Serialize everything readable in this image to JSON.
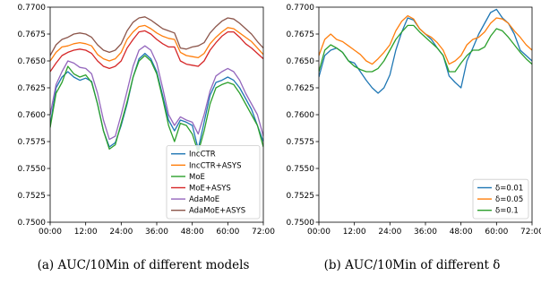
{
  "chart_data": [
    {
      "type": "line",
      "caption": "(a)  AUC/10Min of different models",
      "xlim": [
        0,
        72
      ],
      "ylim": [
        0.75,
        0.77
      ],
      "x_ticks": [
        0,
        12,
        24,
        36,
        48,
        60,
        72
      ],
      "x_tick_labels": [
        "00:00",
        "12:00",
        "24:00",
        "36:00",
        "48:00",
        "60:00",
        "72:00"
      ],
      "y_ticks": [
        0.75,
        0.7525,
        0.755,
        0.7575,
        0.76,
        0.7625,
        0.765,
        0.7675,
        0.77
      ],
      "y_tick_labels": [
        "0.7500",
        "0.7525",
        "0.7550",
        "0.7575",
        "0.7600",
        "0.7625",
        "0.7650",
        "0.7675",
        "0.7700"
      ],
      "legend": "lower-right",
      "x": [
        0,
        2,
        4,
        6,
        8,
        10,
        12,
        14,
        16,
        18,
        20,
        22,
        24,
        26,
        28,
        30,
        32,
        34,
        36,
        38,
        40,
        42,
        44,
        46,
        48,
        50,
        52,
        54,
        56,
        58,
        60,
        62,
        64,
        66,
        68,
        70,
        72
      ],
      "series": [
        {
          "name": "IncCTR",
          "color": "#1f77b4",
          "values": [
            0.759,
            0.7625,
            0.7635,
            0.764,
            0.7635,
            0.7632,
            0.7634,
            0.7631,
            0.761,
            0.7585,
            0.757,
            0.7574,
            0.759,
            0.761,
            0.7635,
            0.7652,
            0.7657,
            0.7652,
            0.764,
            0.7618,
            0.7595,
            0.7585,
            0.7595,
            0.7593,
            0.759,
            0.7568,
            0.7593,
            0.7618,
            0.763,
            0.7632,
            0.7635,
            0.7632,
            0.7625,
            0.7615,
            0.7605,
            0.759,
            0.7575
          ]
        },
        {
          "name": "IncCTR+ASYS",
          "color": "#ff7f0e",
          "values": [
            0.765,
            0.7658,
            0.7663,
            0.7664,
            0.7666,
            0.7667,
            0.7666,
            0.7664,
            0.7656,
            0.7652,
            0.765,
            0.7652,
            0.7658,
            0.767,
            0.7677,
            0.7682,
            0.7683,
            0.768,
            0.7676,
            0.7673,
            0.7671,
            0.767,
            0.7658,
            0.7655,
            0.7654,
            0.7653,
            0.7657,
            0.7666,
            0.7672,
            0.7677,
            0.7681,
            0.768,
            0.7676,
            0.7672,
            0.7668,
            0.7662,
            0.7656
          ]
        },
        {
          "name": "MoE",
          "color": "#2ca02c",
          "values": [
            0.7588,
            0.762,
            0.763,
            0.7645,
            0.7638,
            0.7635,
            0.7637,
            0.763,
            0.761,
            0.7585,
            0.7568,
            0.7572,
            0.7592,
            0.7612,
            0.7635,
            0.765,
            0.7655,
            0.765,
            0.7638,
            0.7615,
            0.759,
            0.7575,
            0.7592,
            0.759,
            0.7582,
            0.7565,
            0.7585,
            0.761,
            0.7625,
            0.7628,
            0.763,
            0.7628,
            0.762,
            0.761,
            0.76,
            0.759,
            0.757
          ]
        },
        {
          "name": "MoE+ASYS",
          "color": "#d62728",
          "values": [
            0.764,
            0.7648,
            0.7655,
            0.7658,
            0.766,
            0.7661,
            0.766,
            0.7657,
            0.765,
            0.7645,
            0.7643,
            0.7645,
            0.765,
            0.7662,
            0.767,
            0.7677,
            0.7678,
            0.7675,
            0.767,
            0.7666,
            0.7663,
            0.7663,
            0.765,
            0.7647,
            0.7646,
            0.7645,
            0.765,
            0.766,
            0.7667,
            0.7673,
            0.7677,
            0.7677,
            0.7672,
            0.7666,
            0.7662,
            0.7657,
            0.7652
          ]
        },
        {
          "name": "AdaMoE",
          "color": "#9467bd",
          "values": [
            0.76,
            0.7628,
            0.764,
            0.765,
            0.7648,
            0.7644,
            0.7643,
            0.7638,
            0.762,
            0.7595,
            0.7577,
            0.758,
            0.76,
            0.7622,
            0.7645,
            0.766,
            0.7664,
            0.766,
            0.7648,
            0.7625,
            0.76,
            0.759,
            0.7598,
            0.7595,
            0.7593,
            0.7582,
            0.76,
            0.7622,
            0.7636,
            0.764,
            0.7643,
            0.764,
            0.7632,
            0.762,
            0.761,
            0.76,
            0.758
          ]
        },
        {
          "name": "AdaMoE+ASYS",
          "color": "#8c564b",
          "values": [
            0.7655,
            0.7665,
            0.767,
            0.7672,
            0.7675,
            0.7676,
            0.7675,
            0.7672,
            0.7665,
            0.766,
            0.7658,
            0.766,
            0.7666,
            0.7678,
            0.7686,
            0.769,
            0.7691,
            0.7688,
            0.7684,
            0.768,
            0.7678,
            0.7676,
            0.7662,
            0.7661,
            0.7663,
            0.7664,
            0.7667,
            0.7676,
            0.7682,
            0.7687,
            0.769,
            0.7689,
            0.7685,
            0.768,
            0.7675,
            0.7668,
            0.7662
          ]
        }
      ]
    },
    {
      "type": "line",
      "caption": "(b)  AUC/10Min of different δ",
      "xlim": [
        0,
        72
      ],
      "ylim": [
        0.75,
        0.77
      ],
      "x_ticks": [
        0,
        12,
        24,
        36,
        48,
        60,
        72
      ],
      "x_tick_labels": [
        "00:00",
        "12:00",
        "24:00",
        "36:00",
        "48:00",
        "60:00",
        "72:00"
      ],
      "y_ticks": [
        0.75,
        0.7525,
        0.755,
        0.7575,
        0.76,
        0.7625,
        0.765,
        0.7675,
        0.77
      ],
      "y_tick_labels": [
        "0.7500",
        "0.7525",
        "0.7550",
        "0.7575",
        "0.7600",
        "0.7625",
        "0.7650",
        "0.7675",
        "0.7700"
      ],
      "legend": "lower-right",
      "x": [
        0,
        2,
        4,
        6,
        8,
        10,
        12,
        14,
        16,
        18,
        20,
        22,
        24,
        26,
        28,
        30,
        32,
        34,
        36,
        38,
        40,
        42,
        44,
        46,
        48,
        50,
        52,
        54,
        56,
        58,
        60,
        62,
        64,
        66,
        68,
        70,
        72
      ],
      "series": [
        {
          "name": "δ=0.01",
          "color": "#1f77b4",
          "values": [
            0.7635,
            0.7655,
            0.766,
            0.7662,
            0.7658,
            0.765,
            0.7648,
            0.764,
            0.7632,
            0.7625,
            0.762,
            0.7625,
            0.7637,
            0.766,
            0.7677,
            0.769,
            0.7688,
            0.768,
            0.7675,
            0.767,
            0.7662,
            0.7655,
            0.7636,
            0.763,
            0.7625,
            0.765,
            0.7662,
            0.7675,
            0.7685,
            0.7695,
            0.7698,
            0.769,
            0.7685,
            0.7675,
            0.766,
            0.7655,
            0.765
          ]
        },
        {
          "name": "δ=0.05",
          "color": "#ff7f0e",
          "values": [
            0.7655,
            0.767,
            0.7675,
            0.767,
            0.7668,
            0.7664,
            0.766,
            0.7656,
            0.765,
            0.7647,
            0.7652,
            0.7658,
            0.7665,
            0.7678,
            0.7687,
            0.7692,
            0.7689,
            0.768,
            0.7675,
            0.7672,
            0.7667,
            0.766,
            0.7647,
            0.765,
            0.7655,
            0.7665,
            0.767,
            0.7672,
            0.7677,
            0.7685,
            0.769,
            0.7689,
            0.7685,
            0.7678,
            0.7672,
            0.7665,
            0.766
          ]
        },
        {
          "name": "δ=0.1",
          "color": "#2ca02c",
          "values": [
            0.764,
            0.766,
            0.7665,
            0.7662,
            0.7658,
            0.765,
            0.7645,
            0.7642,
            0.764,
            0.764,
            0.7643,
            0.765,
            0.766,
            0.767,
            0.7677,
            0.7683,
            0.7683,
            0.7677,
            0.7672,
            0.7667,
            0.7662,
            0.7655,
            0.764,
            0.764,
            0.7648,
            0.7655,
            0.766,
            0.766,
            0.7663,
            0.7673,
            0.768,
            0.7678,
            0.7672,
            0.7665,
            0.7658,
            0.7652,
            0.7647
          ]
        }
      ]
    }
  ]
}
